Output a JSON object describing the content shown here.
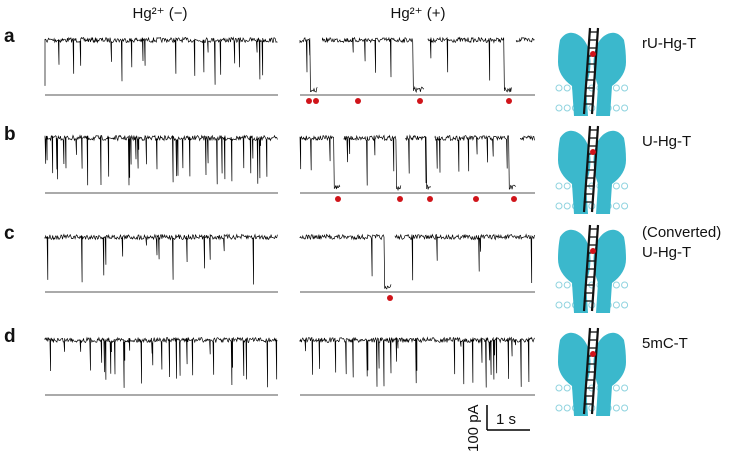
{
  "columns": [
    "Hg²⁺ (−)",
    "Hg²⁺ (+)"
  ],
  "rows": [
    {
      "letter": "a",
      "label": [
        "rU-Hg-T"
      ]
    },
    {
      "letter": "b",
      "label": [
        "U-Hg-T"
      ]
    },
    {
      "letter": "c",
      "label": [
        "(Converted)",
        "U-Hg-T"
      ]
    },
    {
      "letter": "d",
      "label": [
        "5mC-T"
      ]
    }
  ],
  "scale_bar": {
    "current": "100 pA",
    "time": "1 s"
  }
}
